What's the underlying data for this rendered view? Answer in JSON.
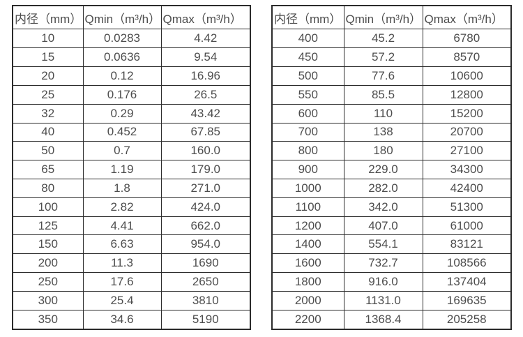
{
  "colors": {
    "border": "#2b2b2b",
    "text": "#4d4d4d",
    "background": "#ffffff"
  },
  "tables": [
    {
      "title": "small-diameter-flow-ranges",
      "headers": [
        "内径（mm）",
        "Qmin（m³/h）",
        "Qmax（m³/h）"
      ],
      "rows": [
        [
          "10",
          "0.0283",
          "4.42"
        ],
        [
          "15",
          "0.0636",
          "9.54"
        ],
        [
          "20",
          "0.12",
          "16.96"
        ],
        [
          "25",
          "0.176",
          "26.5"
        ],
        [
          "32",
          "0.29",
          "43.42"
        ],
        [
          "40",
          "0.452",
          "67.85"
        ],
        [
          "50",
          "0.7",
          "160.0"
        ],
        [
          "65",
          "1.19",
          "179.0"
        ],
        [
          "80",
          "1.8",
          "271.0"
        ],
        [
          "100",
          "2.82",
          "424.0"
        ],
        [
          "125",
          "4.41",
          "662.0"
        ],
        [
          "150",
          "6.63",
          "954.0"
        ],
        [
          "200",
          "11.3",
          "1690"
        ],
        [
          "250",
          "17.6",
          "2650"
        ],
        [
          "300",
          "25.4",
          "3810"
        ],
        [
          "350",
          "34.6",
          "5190"
        ]
      ]
    },
    {
      "title": "large-diameter-flow-ranges",
      "headers": [
        "内径（mm）",
        "Qmin（m³/h）",
        "Qmax（m³/h）"
      ],
      "rows": [
        [
          "400",
          "45.2",
          "6780"
        ],
        [
          "450",
          "57.2",
          "8570"
        ],
        [
          "500",
          "77.6",
          "10600"
        ],
        [
          "550",
          "85.5",
          "12800"
        ],
        [
          "600",
          "110",
          "15200"
        ],
        [
          "700",
          "138",
          "20700"
        ],
        [
          "800",
          "180",
          "27100"
        ],
        [
          "900",
          "229.0",
          "34300"
        ],
        [
          "1000",
          "282.0",
          "42400"
        ],
        [
          "1100",
          "342.0",
          "51300"
        ],
        [
          "1200",
          "407.0",
          "61000"
        ],
        [
          "1400",
          "554.1",
          "83121"
        ],
        [
          "1600",
          "732.7",
          "108566"
        ],
        [
          "1800",
          "916.0",
          "137404"
        ],
        [
          "2000",
          "1131.0",
          "169635"
        ],
        [
          "2200",
          "1368.4",
          "205258"
        ]
      ]
    }
  ]
}
